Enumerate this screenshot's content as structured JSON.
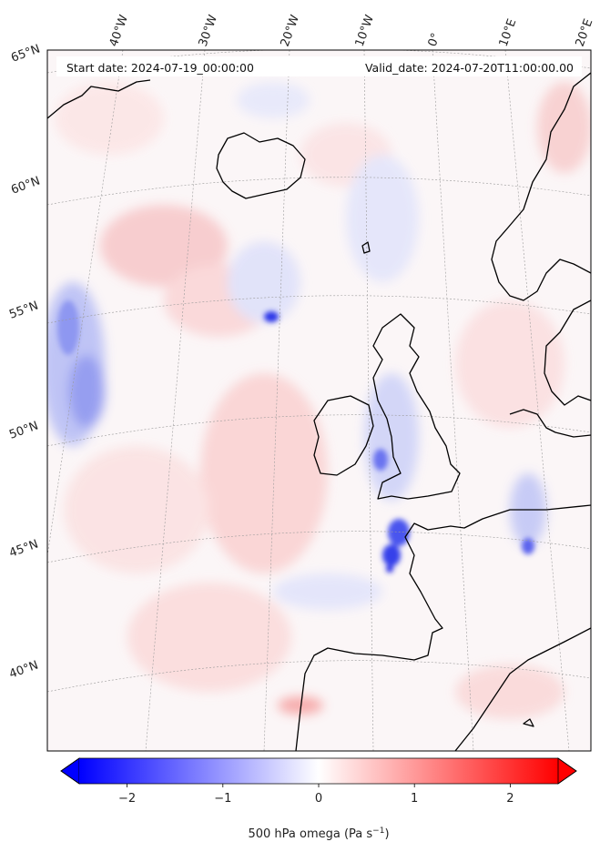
{
  "header": {
    "start_date": "Start date: 2024-07-19_00:00:00",
    "valid_date": "Valid_date: 2024-07-20T11:00:00.00"
  },
  "lon_labels": [
    "40°W",
    "30°W",
    "20°W",
    "10°W",
    "0°",
    "10°E",
    "20°E"
  ],
  "lat_labels": [
    "65°N",
    "60°N",
    "55°N",
    "50°N",
    "45°N",
    "40°N"
  ],
  "colorbar": {
    "ticks": [
      "−2",
      "−1",
      "0",
      "1",
      "2"
    ],
    "tick_values": [
      -2,
      -1,
      0,
      1,
      2
    ],
    "range": [
      -2.5,
      2.5
    ],
    "label_text": "500 hPa omega (Pa s",
    "label_sup": "−1",
    "label_tail": ")",
    "colors": {
      "min": "#0000ff",
      "zero": "#ffffff",
      "max": "#ff0000"
    },
    "extend": "both"
  },
  "colors": {
    "coastline": "#000000",
    "graticule": "#9a9a9a"
  }
}
